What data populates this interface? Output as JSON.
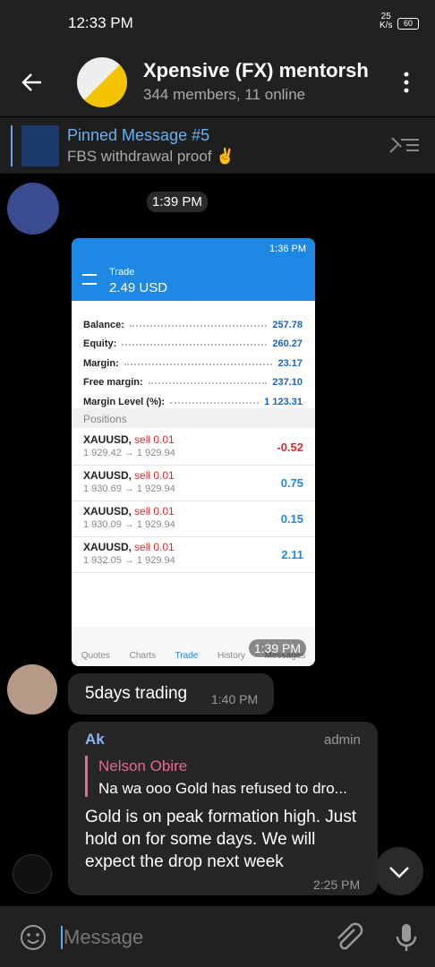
{
  "status_bar": {
    "time": "12:33 PM",
    "speed": "25",
    "speed_unit": "K/s",
    "battery": "60"
  },
  "header": {
    "title": "Xpensive (FX) mentorsh",
    "subtitle": "344 members, 11 online"
  },
  "pinned": {
    "title": "Pinned Message #5",
    "text": "FBS withdrawal proof ✌️"
  },
  "date_pill": "1:39 PM",
  "photo": {
    "status_time": "1:36 PM",
    "section": "Trade",
    "balance_header": "2.49 USD",
    "account": [
      {
        "label": "Balance:",
        "value": "257.78"
      },
      {
        "label": "Equity:",
        "value": "260.27"
      },
      {
        "label": "Margin:",
        "value": "23.17"
      },
      {
        "label": "Free margin:",
        "value": "237.10"
      },
      {
        "label": "Margin Level (%):",
        "value": "1 123.31"
      }
    ],
    "positions_label": "Positions",
    "positions": [
      {
        "symbol": "XAUUSD,",
        "side": "sell 0.01",
        "prices": "1 929.42 → 1 929.94",
        "profit": "-0.52"
      },
      {
        "symbol": "XAUUSD,",
        "side": "sell 0.01",
        "prices": "1 930.69 → 1 929.94",
        "profit": "0.75"
      },
      {
        "symbol": "XAUUSD,",
        "side": "sell 0.01",
        "prices": "1 930.09 → 1 929.94",
        "profit": "0.15"
      },
      {
        "symbol": "XAUUSD,",
        "side": "sell 0.01",
        "prices": "1 932.05 → 1 929.94",
        "profit": "2.11"
      }
    ],
    "tabs": [
      "Quotes",
      "Charts",
      "Trade",
      "History",
      "Messages"
    ],
    "time": "1:39 PM"
  },
  "messages": [
    {
      "text": "5days trading",
      "time": "1:40 PM"
    },
    {
      "sender": "Ak",
      "role": "admin",
      "reply_name": "Nelson Obire",
      "reply_text": "Na wa ooo Gold has refused to dro...",
      "text": "Gold is on peak formation high. Just hold on for some days. We will expect the drop next week",
      "time": "2:25 PM"
    }
  ],
  "input": {
    "placeholder": "Message"
  }
}
